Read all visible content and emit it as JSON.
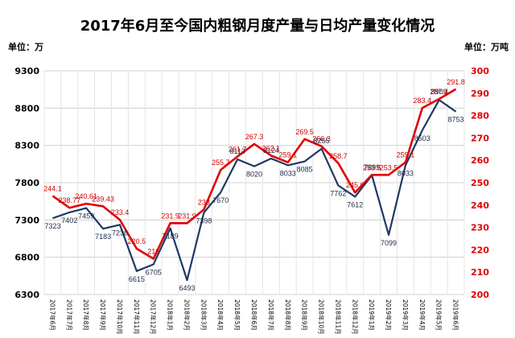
{
  "chart_data": {
    "type": "line",
    "title": "2017年6月至今国内粗钢月度产量与日均产量变化情况",
    "left_axis_unit": "单位：万",
    "right_axis_unit": "单位：万吨",
    "categories": [
      "2017年6月",
      "2017年7月",
      "2017年8月",
      "2017年9月",
      "2017年10月",
      "2017年11月",
      "2017年12月",
      "2018年1月",
      "2018年2月",
      "2018年3月",
      "2018年4月",
      "2018年5月",
      "2018年6月",
      "2018年7月",
      "2018年8月",
      "2018年9月",
      "2018年10月",
      "2018年11月",
      "2018年12月",
      "2019年1月",
      "2019年2月",
      "2019年3月",
      "2019年4月",
      "2019年5月",
      "2019年6月"
    ],
    "y_left": {
      "ylim": [
        6300,
        9300
      ],
      "ticks": [
        6300,
        6800,
        7300,
        7800,
        8300,
        8800,
        9300
      ]
    },
    "y_right": {
      "ylim": [
        200,
        300
      ],
      "ticks": [
        200,
        210,
        220,
        230,
        240,
        250,
        260,
        270,
        280,
        290,
        300
      ]
    },
    "grid": true,
    "series": [
      {
        "axis": "left",
        "color": "#1f3864",
        "values": [
          7323,
          7402,
          7459,
          7183,
          7236,
          6615,
          6705,
          7189,
          6493,
          7398,
          7670,
          8113,
          8020,
          8124,
          8033,
          8085,
          8255,
          7762,
          7612,
          7899,
          7099,
          8033,
          8503,
          8909,
          8753
        ],
        "labels": [
          "7323",
          "7402",
          "7459",
          "7183",
          "7236",
          "6615",
          "6705",
          "7189",
          "6493",
          "7398",
          "7670",
          "8113",
          "8020",
          "8124",
          "8033",
          "8085",
          "8255",
          "7762",
          "7612",
          "7899",
          "7099",
          "8033",
          "8503",
          "8909",
          "8753"
        ]
      },
      {
        "axis": "right",
        "color": "#e00000",
        "values": [
          244.1,
          238.77,
          240.61,
          239.43,
          233.4,
          220.5,
          216,
          231.9,
          231.9,
          238,
          255.7,
          261.7,
          267.3,
          262.1,
          259.1,
          269.5,
          266.3,
          258.7,
          245.6,
          253.5,
          253.5,
          259.1,
          283.4,
          287.4,
          291.8
        ],
        "labels": [
          "244.1",
          "238.77",
          "240.61",
          "239.43",
          "233.4",
          "220.5",
          "216",
          "231.9",
          "231.9",
          "238",
          "255.7",
          "261.7",
          "267.3",
          "262.1",
          "259.1",
          "269.5",
          "266.3",
          "258.7",
          "245.6",
          "253.5",
          "253.5",
          "259.1",
          "283.4",
          "287.4",
          "291.8"
        ]
      }
    ]
  }
}
